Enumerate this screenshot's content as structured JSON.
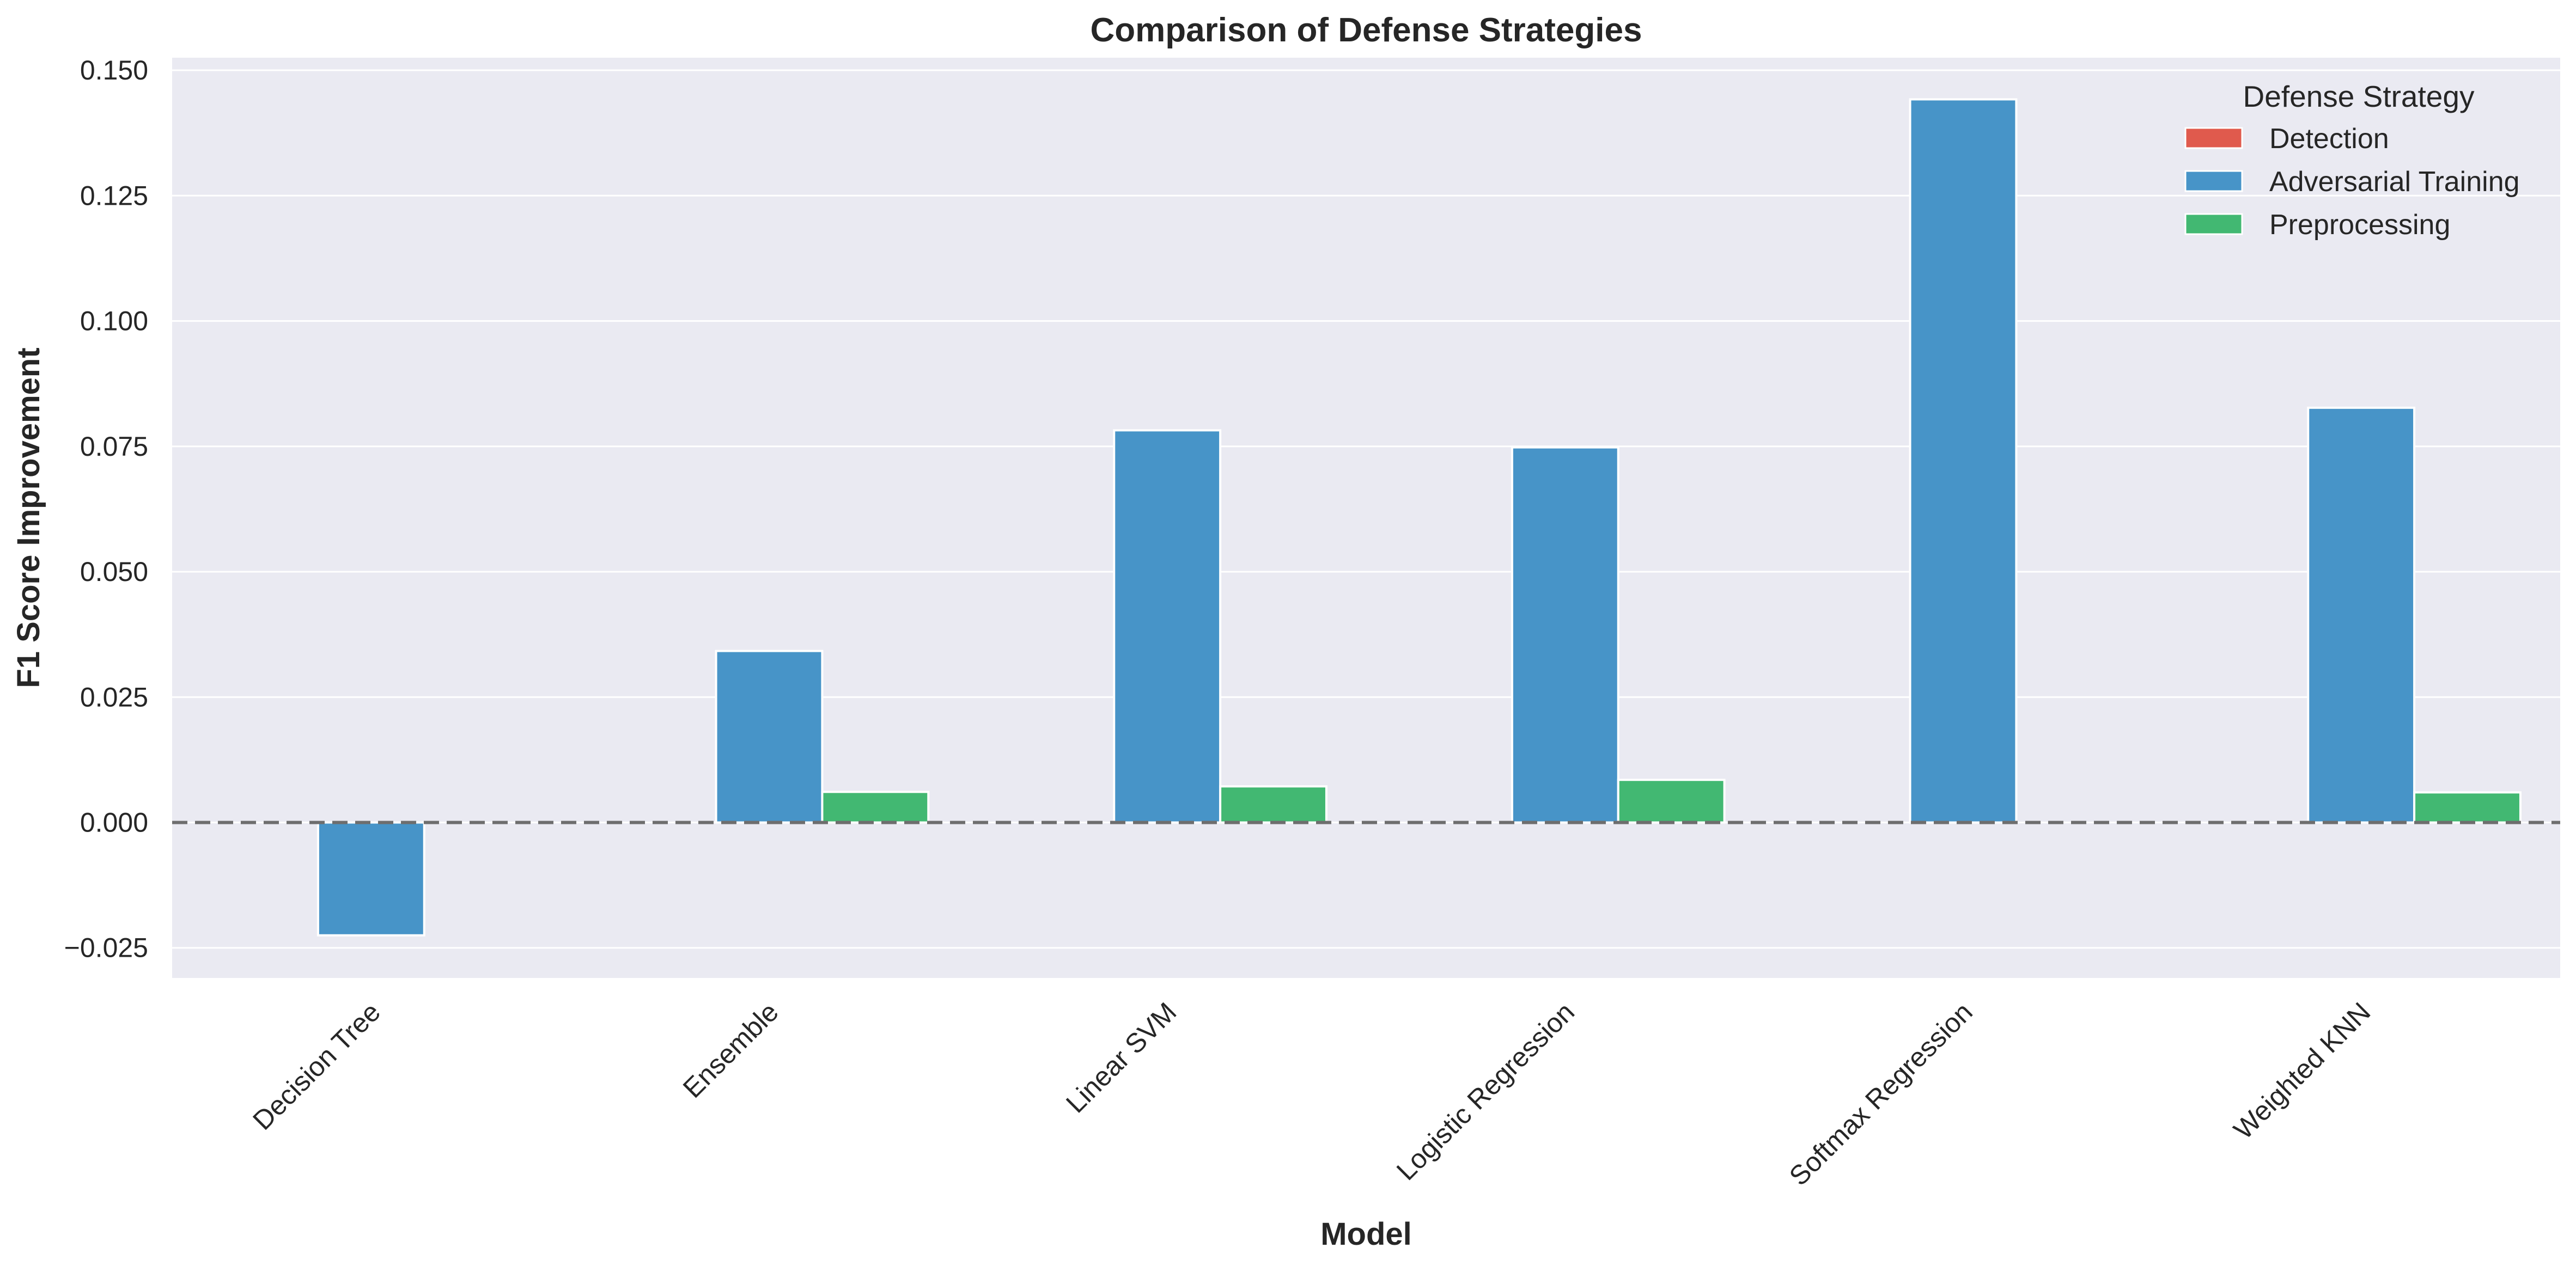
{
  "chart_data": {
    "type": "bar",
    "title": "Comparison of Defense Strategies",
    "xlabel": "Model",
    "ylabel": "F1 Score Improvement",
    "categories": [
      "Decision Tree",
      "Ensemble",
      "Linear SVM",
      "Logistic Regression",
      "Softmax Regression",
      "Weighted KNN"
    ],
    "series": [
      {
        "name": "Detection",
        "color": "#e05a4d",
        "values": [
          0,
          0,
          0,
          0,
          0,
          0
        ]
      },
      {
        "name": "Adversarial Training",
        "color": "#4794c8",
        "values": [
          -0.0225,
          0.0342,
          0.0782,
          0.0748,
          0.1442,
          0.0827
        ]
      },
      {
        "name": "Preprocessing",
        "color": "#42b872",
        "values": [
          0,
          0.0061,
          0.0072,
          0.0085,
          0,
          0.006
        ]
      }
    ],
    "ylim": [
      -0.031,
      0.1525
    ],
    "yticks": [
      -0.025,
      0,
      0.025,
      0.05,
      0.075,
      0.1,
      0.125,
      0.15
    ],
    "ytick_labels": [
      "−0.025",
      "0.000",
      "0.025",
      "0.050",
      "0.075",
      "0.100",
      "0.125",
      "0.150"
    ],
    "reference_line": {
      "y": 0,
      "style": "dashed",
      "color": "#6e6e6e"
    },
    "legend": {
      "title": "Defense Strategy",
      "position": "top-right"
    },
    "grid": true,
    "background_color": "#eaeaf2"
  }
}
